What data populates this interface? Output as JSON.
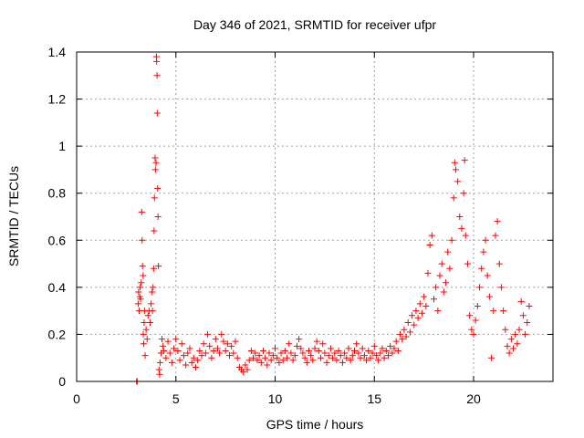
{
  "chart_data": {
    "type": "scatter",
    "title": "Day 346 of 2021, SRMTID for receiver ufpr",
    "xlabel": "GPS time / hours",
    "ylabel": "SRMTID / TECUs",
    "xlim": [
      0,
      24
    ],
    "ylim": [
      0,
      1.4
    ],
    "xticks": [
      0,
      5,
      10,
      15,
      20
    ],
    "xtick_labels": [
      "0",
      "5",
      "10",
      "15",
      "20"
    ],
    "yticks": [
      0,
      0.2,
      0.4,
      0.6,
      0.8,
      1,
      1.2,
      1.4
    ],
    "ytick_labels": [
      "0",
      "0.2",
      "0.4",
      "0.6",
      "0.8",
      "1",
      "1.2",
      "1.4"
    ],
    "grid": true,
    "marker": "+",
    "color": "#ff0000",
    "series": [
      {
        "name": "SRMTID",
        "points": [
          [
            3.02,
            0.0
          ],
          [
            3.05,
            0.0
          ],
          [
            3.1,
            0.33
          ],
          [
            3.12,
            0.38
          ],
          [
            3.15,
            0.3
          ],
          [
            3.18,
            0.36
          ],
          [
            3.2,
            0.4
          ],
          [
            3.22,
            0.35
          ],
          [
            3.25,
            0.42
          ],
          [
            3.28,
            0.72
          ],
          [
            3.3,
            0.6
          ],
          [
            3.32,
            0.49
          ],
          [
            3.35,
            0.45
          ],
          [
            3.36,
            0.2
          ],
          [
            3.38,
            0.16
          ],
          [
            3.4,
            0.25
          ],
          [
            3.42,
            0.3
          ],
          [
            3.45,
            0.11
          ],
          [
            3.5,
            0.22
          ],
          [
            3.55,
            0.18
          ],
          [
            3.6,
            0.28
          ],
          [
            3.65,
            0.3
          ],
          [
            3.7,
            0.25
          ],
          [
            3.75,
            0.33
          ],
          [
            3.8,
            0.38
          ],
          [
            3.82,
            0.3
          ],
          [
            3.85,
            0.4
          ],
          [
            3.88,
            0.48
          ],
          [
            3.9,
            0.64
          ],
          [
            3.92,
            0.78
          ],
          [
            3.95,
            0.95
          ],
          [
            3.97,
            0.9
          ],
          [
            4.0,
            0.93
          ],
          [
            4.02,
            1.38
          ],
          [
            4.03,
            1.36
          ],
          [
            4.05,
            1.3
          ],
          [
            4.06,
            1.14
          ],
          [
            4.08,
            0.82
          ],
          [
            4.1,
            0.7
          ],
          [
            4.12,
            0.49
          ],
          [
            4.15,
            0.05
          ],
          [
            4.18,
            0.03
          ],
          [
            4.2,
            0.08
          ],
          [
            4.25,
            0.12
          ],
          [
            4.3,
            0.18
          ],
          [
            4.35,
            0.15
          ],
          [
            4.4,
            0.13
          ],
          [
            4.5,
            0.1
          ],
          [
            4.6,
            0.17
          ],
          [
            4.7,
            0.12
          ],
          [
            4.8,
            0.08
          ],
          [
            4.9,
            0.14
          ],
          [
            5.0,
            0.18
          ],
          [
            5.1,
            0.13
          ],
          [
            5.2,
            0.09
          ],
          [
            5.3,
            0.16
          ],
          [
            5.4,
            0.11
          ],
          [
            5.5,
            0.07
          ],
          [
            5.6,
            0.12
          ],
          [
            5.7,
            0.14
          ],
          [
            5.8,
            0.08
          ],
          [
            5.9,
            0.1
          ],
          [
            6.0,
            0.06
          ],
          [
            6.1,
            0.09
          ],
          [
            6.2,
            0.13
          ],
          [
            6.3,
            0.11
          ],
          [
            6.4,
            0.16
          ],
          [
            6.5,
            0.12
          ],
          [
            6.6,
            0.2
          ],
          [
            6.7,
            0.15
          ],
          [
            6.8,
            0.1
          ],
          [
            6.9,
            0.13
          ],
          [
            7.0,
            0.18
          ],
          [
            7.1,
            0.14
          ],
          [
            7.2,
            0.12
          ],
          [
            7.3,
            0.2
          ],
          [
            7.4,
            0.17
          ],
          [
            7.5,
            0.13
          ],
          [
            7.6,
            0.16
          ],
          [
            7.7,
            0.11
          ],
          [
            7.8,
            0.15
          ],
          [
            7.9,
            0.12
          ],
          [
            8.0,
            0.17
          ],
          [
            8.1,
            0.1
          ],
          [
            8.2,
            0.06
          ],
          [
            8.3,
            0.05
          ],
          [
            8.4,
            0.04
          ],
          [
            8.5,
            0.07
          ],
          [
            8.6,
            0.05
          ],
          [
            8.7,
            0.09
          ],
          [
            8.8,
            0.13
          ],
          [
            8.9,
            0.1
          ],
          [
            9.0,
            0.12
          ],
          [
            9.1,
            0.09
          ],
          [
            9.2,
            0.11
          ],
          [
            9.3,
            0.08
          ],
          [
            9.4,
            0.13
          ],
          [
            9.5,
            0.1
          ],
          [
            9.6,
            0.07
          ],
          [
            9.7,
            0.12
          ],
          [
            9.8,
            0.09
          ],
          [
            9.9,
            0.11
          ],
          [
            10.0,
            0.14
          ],
          [
            10.1,
            0.1
          ],
          [
            10.2,
            0.08
          ],
          [
            10.3,
            0.12
          ],
          [
            10.4,
            0.09
          ],
          [
            10.5,
            0.13
          ],
          [
            10.6,
            0.1
          ],
          [
            10.7,
            0.16
          ],
          [
            10.8,
            0.12
          ],
          [
            10.9,
            0.09
          ],
          [
            11.0,
            0.11
          ],
          [
            11.1,
            0.15
          ],
          [
            11.2,
            0.18
          ],
          [
            11.3,
            0.14
          ],
          [
            11.4,
            0.12
          ],
          [
            11.5,
            0.1
          ],
          [
            11.6,
            0.08
          ],
          [
            11.7,
            0.13
          ],
          [
            11.8,
            0.11
          ],
          [
            11.9,
            0.09
          ],
          [
            12.0,
            0.14
          ],
          [
            12.1,
            0.17
          ],
          [
            12.2,
            0.13
          ],
          [
            12.3,
            0.1
          ],
          [
            12.4,
            0.16
          ],
          [
            12.5,
            0.12
          ],
          [
            12.6,
            0.08
          ],
          [
            12.7,
            0.11
          ],
          [
            12.8,
            0.14
          ],
          [
            12.9,
            0.1
          ],
          [
            13.0,
            0.12
          ],
          [
            13.1,
            0.09
          ],
          [
            13.2,
            0.13
          ],
          [
            13.3,
            0.11
          ],
          [
            13.4,
            0.08
          ],
          [
            13.5,
            0.12
          ],
          [
            13.6,
            0.1
          ],
          [
            13.7,
            0.14
          ],
          [
            13.8,
            0.09
          ],
          [
            13.9,
            0.11
          ],
          [
            14.0,
            0.13
          ],
          [
            14.1,
            0.16
          ],
          [
            14.2,
            0.12
          ],
          [
            14.3,
            0.1
          ],
          [
            14.4,
            0.14
          ],
          [
            14.5,
            0.11
          ],
          [
            14.6,
            0.09
          ],
          [
            14.7,
            0.13
          ],
          [
            14.8,
            0.1
          ],
          [
            14.9,
            0.12
          ],
          [
            15.0,
            0.15
          ],
          [
            15.1,
            0.11
          ],
          [
            15.2,
            0.09
          ],
          [
            15.3,
            0.12
          ],
          [
            15.4,
            0.14
          ],
          [
            15.5,
            0.1
          ],
          [
            15.6,
            0.13
          ],
          [
            15.7,
            0.11
          ],
          [
            15.8,
            0.15
          ],
          [
            15.9,
            0.12
          ],
          [
            16.0,
            0.14
          ],
          [
            16.1,
            0.17
          ],
          [
            16.2,
            0.13
          ],
          [
            16.3,
            0.2
          ],
          [
            16.4,
            0.18
          ],
          [
            16.5,
            0.22
          ],
          [
            16.6,
            0.19
          ],
          [
            16.7,
            0.25
          ],
          [
            16.8,
            0.21
          ],
          [
            16.9,
            0.28
          ],
          [
            17.0,
            0.24
          ],
          [
            17.1,
            0.3
          ],
          [
            17.2,
            0.27
          ],
          [
            17.3,
            0.33
          ],
          [
            17.4,
            0.29
          ],
          [
            17.5,
            0.36
          ],
          [
            17.6,
            0.32
          ],
          [
            17.7,
            0.46
          ],
          [
            17.8,
            0.58
          ],
          [
            17.9,
            0.62
          ],
          [
            18.0,
            0.35
          ],
          [
            18.1,
            0.4
          ],
          [
            18.2,
            0.3
          ],
          [
            18.3,
            0.45
          ],
          [
            18.4,
            0.5
          ],
          [
            18.5,
            0.38
          ],
          [
            18.6,
            0.42
          ],
          [
            18.7,
            0.55
          ],
          [
            18.8,
            0.48
          ],
          [
            18.9,
            0.6
          ],
          [
            19.0,
            0.78
          ],
          [
            19.05,
            0.93
          ],
          [
            19.1,
            0.9
          ],
          [
            19.2,
            0.85
          ],
          [
            19.3,
            0.7
          ],
          [
            19.4,
            0.65
          ],
          [
            19.5,
            0.8
          ],
          [
            19.55,
            0.94
          ],
          [
            19.6,
            0.62
          ],
          [
            19.7,
            0.5
          ],
          [
            19.8,
            0.28
          ],
          [
            19.9,
            0.22
          ],
          [
            20.0,
            0.2
          ],
          [
            20.1,
            0.26
          ],
          [
            20.2,
            0.32
          ],
          [
            20.3,
            0.4
          ],
          [
            20.4,
            0.48
          ],
          [
            20.5,
            0.55
          ],
          [
            20.6,
            0.6
          ],
          [
            20.7,
            0.45
          ],
          [
            20.8,
            0.36
          ],
          [
            20.9,
            0.1
          ],
          [
            21.0,
            0.3
          ],
          [
            21.1,
            0.62
          ],
          [
            21.2,
            0.68
          ],
          [
            21.3,
            0.5
          ],
          [
            21.4,
            0.4
          ],
          [
            21.5,
            0.3
          ],
          [
            21.6,
            0.22
          ],
          [
            21.7,
            0.15
          ],
          [
            21.8,
            0.12
          ],
          [
            21.9,
            0.18
          ],
          [
            22.0,
            0.14
          ],
          [
            22.1,
            0.2
          ],
          [
            22.2,
            0.16
          ],
          [
            22.3,
            0.22
          ],
          [
            22.4,
            0.34
          ],
          [
            22.5,
            0.28
          ],
          [
            22.6,
            0.2
          ],
          [
            22.7,
            0.25
          ],
          [
            22.8,
            0.32
          ]
        ]
      }
    ]
  }
}
